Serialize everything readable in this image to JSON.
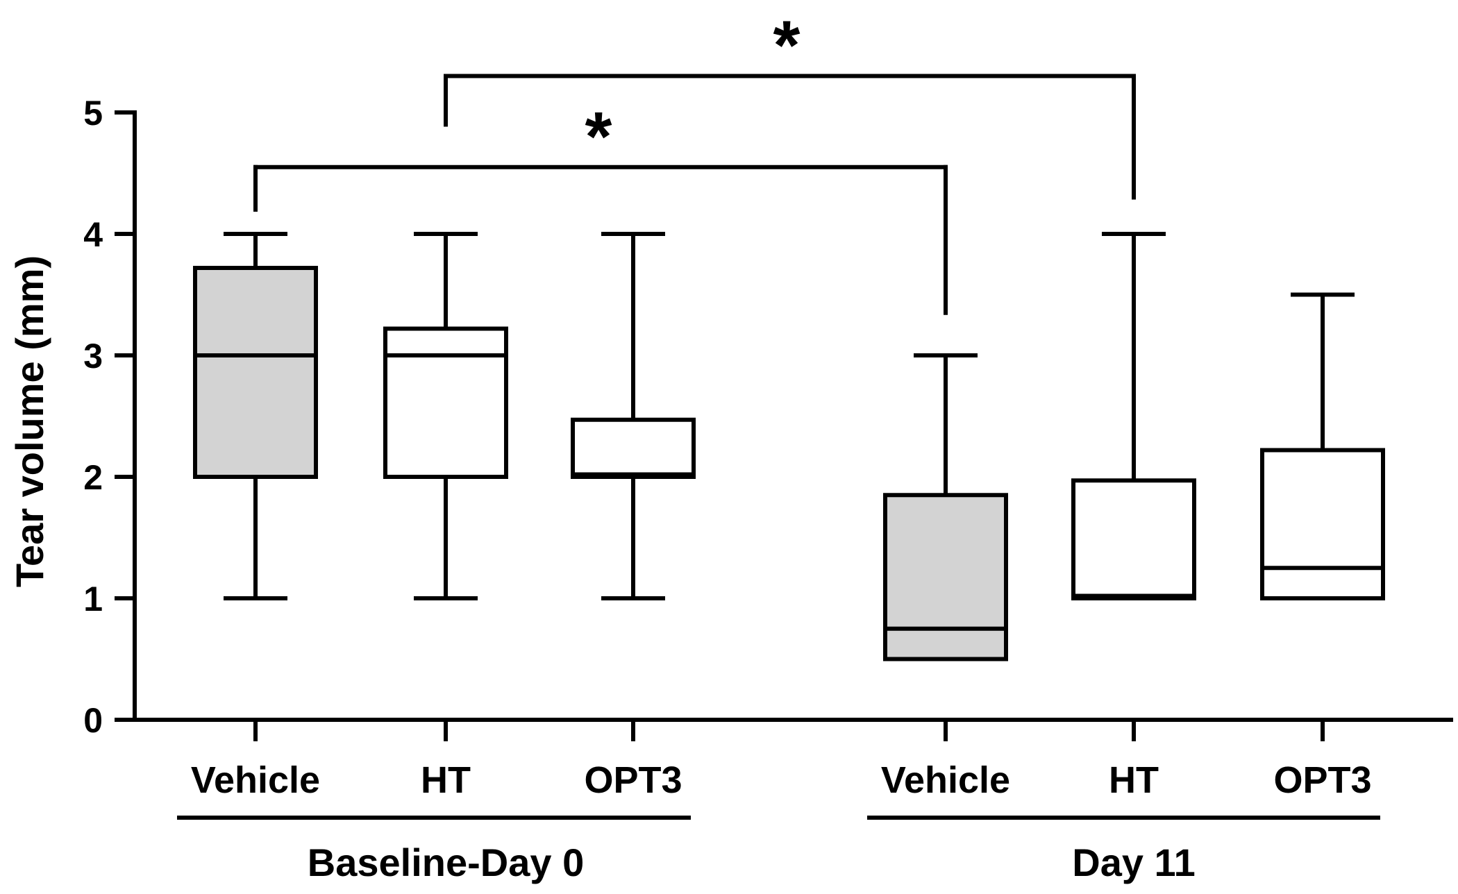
{
  "chart_data": {
    "type": "boxplot",
    "title": "",
    "xlabel": "",
    "ylabel": "Tear volume (mm)",
    "ylim": [
      0,
      5
    ],
    "yticks": [
      "0",
      "1",
      "2",
      "3",
      "4",
      "5"
    ],
    "groups": [
      {
        "name": "Baseline-Day 0",
        "boxes": [
          {
            "label": "Vehicle",
            "min": 1,
            "q1": 2,
            "median": 3,
            "q3": 3.72,
            "max": 4,
            "fill": "#d3d3d3"
          },
          {
            "label": "HT",
            "min": 1,
            "q1": 2,
            "median": 3,
            "q3": 3.22,
            "max": 4,
            "fill": "#ffffff"
          },
          {
            "label": "OPT3",
            "min": 1,
            "q1": 2,
            "median": 2.02,
            "q3": 2.47,
            "max": 4,
            "fill": "#ffffff"
          }
        ]
      },
      {
        "name": "Day 11",
        "boxes": [
          {
            "label": "Vehicle",
            "min": 0.5,
            "q1": 0.5,
            "median": 0.75,
            "q3": 1.85,
            "max": 3,
            "fill": "#d3d3d3"
          },
          {
            "label": "HT",
            "min": 1,
            "q1": 1,
            "median": 1.02,
            "q3": 1.97,
            "max": 4,
            "fill": "#ffffff"
          },
          {
            "label": "OPT3",
            "min": 1,
            "q1": 1,
            "median": 1.25,
            "q3": 2.22,
            "max": 3.5,
            "fill": "#ffffff"
          }
        ]
      }
    ],
    "significance": [
      {
        "from": "Baseline-Day 0 Vehicle",
        "to": "Day 11 Vehicle",
        "label": "*",
        "bar_y": 4.55,
        "from_y": 4.2,
        "to_y": 3.35
      },
      {
        "from": "Baseline-Day 0 HT",
        "to": "Day 11 HT",
        "label": "*",
        "bar_y": 5.3,
        "from_y": 4.9,
        "to_y": 4.3
      }
    ]
  }
}
